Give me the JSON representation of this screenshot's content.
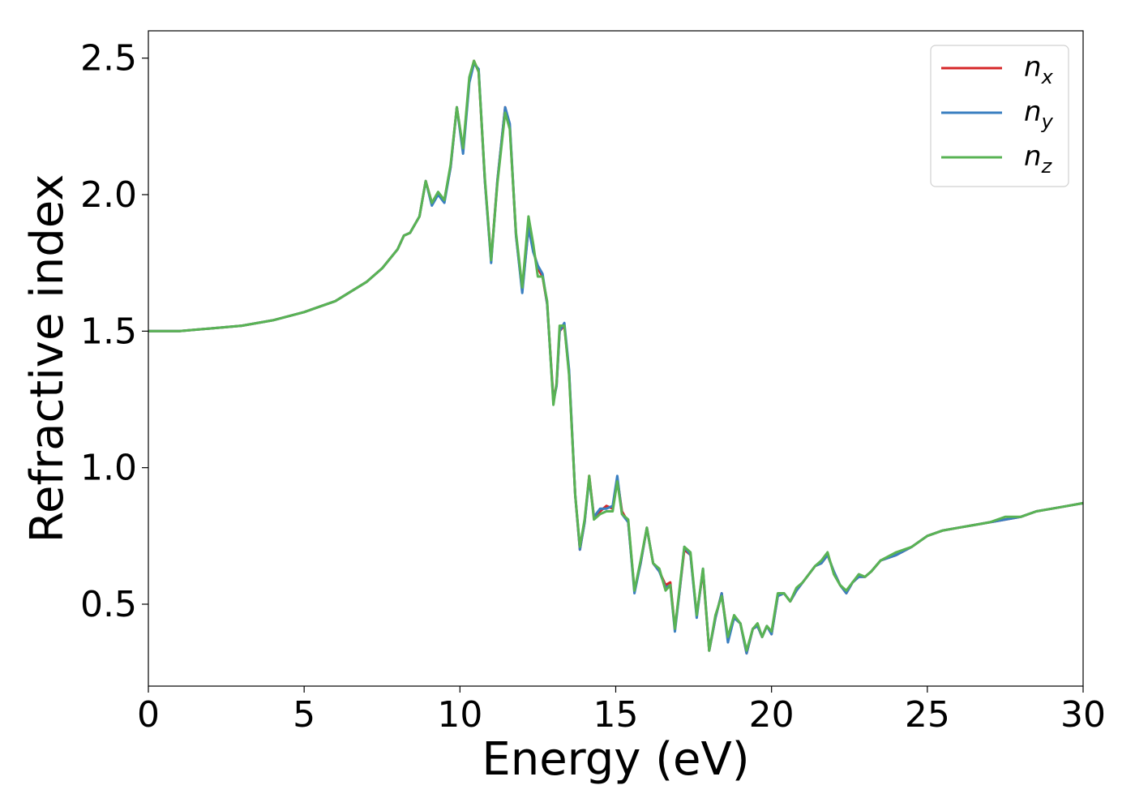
{
  "chart_data": {
    "type": "line",
    "xlabel": "Energy (eV)",
    "ylabel": "Refractive index",
    "xlim": [
      0,
      30
    ],
    "ylim": [
      0.2,
      2.6
    ],
    "xticks": [
      "0",
      "5",
      "10",
      "15",
      "20",
      "25",
      "30"
    ],
    "yticks": [
      "0.5",
      "1.0",
      "1.5",
      "2.0",
      "2.5"
    ],
    "grid": false,
    "legend_position": "top-right",
    "series": [
      {
        "name": "n_x",
        "legend_main": "n",
        "legend_sub": "x",
        "color": "#d62728",
        "x": [
          0,
          1,
          2,
          3,
          4,
          5,
          6,
          7,
          7.5,
          8.0,
          8.2,
          8.4,
          8.7,
          8.9,
          9.1,
          9.3,
          9.5,
          9.7,
          9.9,
          10.1,
          10.3,
          10.45,
          10.6,
          10.8,
          11.0,
          11.2,
          11.45,
          11.6,
          11.8,
          12.0,
          12.2,
          12.35,
          12.5,
          12.65,
          12.8,
          13.0,
          13.1,
          13.2,
          13.35,
          13.5,
          13.7,
          13.85,
          14.0,
          14.15,
          14.3,
          14.5,
          14.7,
          14.9,
          15.05,
          15.2,
          15.4,
          15.6,
          15.8,
          16.0,
          16.2,
          16.4,
          16.6,
          16.75,
          16.9,
          17.05,
          17.2,
          17.4,
          17.6,
          17.8,
          18.0,
          18.2,
          18.4,
          18.6,
          18.8,
          19.0,
          19.2,
          19.4,
          19.55,
          19.7,
          19.85,
          20.0,
          20.2,
          20.4,
          20.6,
          20.8,
          21.0,
          21.2,
          21.4,
          21.6,
          21.8,
          22.0,
          22.2,
          22.4,
          22.6,
          22.8,
          23.0,
          23.2,
          23.5,
          24.0,
          24.5,
          25.0,
          25.5,
          26.0,
          26.5,
          27.0,
          27.5,
          28.0,
          28.5,
          29.0,
          29.5,
          30.0
        ],
        "values": [
          1.5,
          1.5,
          1.51,
          1.52,
          1.54,
          1.57,
          1.61,
          1.68,
          1.73,
          1.8,
          1.85,
          1.86,
          1.92,
          2.05,
          1.97,
          2.0,
          1.98,
          2.1,
          2.32,
          2.16,
          2.42,
          2.49,
          2.45,
          2.05,
          1.76,
          2.05,
          2.32,
          2.25,
          1.85,
          1.65,
          1.88,
          1.8,
          1.73,
          1.7,
          1.6,
          1.25,
          1.3,
          1.5,
          1.52,
          1.35,
          0.9,
          0.7,
          0.8,
          0.97,
          0.82,
          0.84,
          0.86,
          0.85,
          0.96,
          0.84,
          0.8,
          0.55,
          0.65,
          0.78,
          0.65,
          0.62,
          0.57,
          0.58,
          0.41,
          0.55,
          0.7,
          0.68,
          0.46,
          0.62,
          0.33,
          0.45,
          0.54,
          0.37,
          0.45,
          0.43,
          0.32,
          0.41,
          0.42,
          0.38,
          0.42,
          0.39,
          0.53,
          0.54,
          0.51,
          0.55,
          0.58,
          0.61,
          0.64,
          0.65,
          0.68,
          0.62,
          0.57,
          0.54,
          0.58,
          0.6,
          0.6,
          0.62,
          0.66,
          0.68,
          0.71,
          0.75,
          0.77,
          0.78,
          0.79,
          0.8,
          0.81,
          0.82,
          0.84,
          0.85,
          0.86,
          0.87
        ]
      },
      {
        "name": "n_y",
        "legend_main": "n",
        "legend_sub": "y",
        "color": "#3a7fc1",
        "x": [
          0,
          1,
          2,
          3,
          4,
          5,
          6,
          7,
          7.5,
          8.0,
          8.2,
          8.4,
          8.7,
          8.9,
          9.1,
          9.3,
          9.5,
          9.7,
          9.9,
          10.1,
          10.3,
          10.45,
          10.6,
          10.8,
          11.0,
          11.2,
          11.45,
          11.6,
          11.8,
          12.0,
          12.2,
          12.35,
          12.5,
          12.65,
          12.8,
          13.0,
          13.1,
          13.2,
          13.35,
          13.5,
          13.7,
          13.85,
          14.0,
          14.15,
          14.3,
          14.5,
          14.7,
          14.9,
          15.05,
          15.2,
          15.4,
          15.6,
          15.8,
          16.0,
          16.2,
          16.4,
          16.6,
          16.75,
          16.9,
          17.05,
          17.2,
          17.4,
          17.6,
          17.8,
          18.0,
          18.2,
          18.4,
          18.6,
          18.8,
          19.0,
          19.2,
          19.4,
          19.55,
          19.7,
          19.85,
          20.0,
          20.2,
          20.4,
          20.6,
          20.8,
          21.0,
          21.2,
          21.4,
          21.6,
          21.8,
          22.0,
          22.2,
          22.4,
          22.6,
          22.8,
          23.0,
          23.2,
          23.5,
          24.0,
          24.5,
          25.0,
          25.5,
          26.0,
          26.5,
          27.0,
          27.5,
          28.0,
          28.5,
          29.0,
          29.5,
          30.0
        ],
        "values": [
          1.5,
          1.5,
          1.51,
          1.52,
          1.54,
          1.57,
          1.61,
          1.68,
          1.73,
          1.8,
          1.85,
          1.86,
          1.92,
          2.05,
          1.96,
          2.0,
          1.97,
          2.1,
          2.32,
          2.15,
          2.41,
          2.48,
          2.46,
          2.05,
          1.75,
          2.05,
          2.32,
          2.26,
          1.85,
          1.64,
          1.88,
          1.79,
          1.74,
          1.71,
          1.6,
          1.24,
          1.3,
          1.5,
          1.53,
          1.36,
          0.9,
          0.7,
          0.8,
          0.96,
          0.82,
          0.85,
          0.85,
          0.86,
          0.97,
          0.83,
          0.8,
          0.54,
          0.65,
          0.78,
          0.65,
          0.62,
          0.56,
          0.57,
          0.4,
          0.55,
          0.71,
          0.68,
          0.45,
          0.63,
          0.33,
          0.45,
          0.54,
          0.36,
          0.45,
          0.43,
          0.32,
          0.41,
          0.42,
          0.38,
          0.42,
          0.39,
          0.53,
          0.54,
          0.51,
          0.55,
          0.58,
          0.61,
          0.64,
          0.65,
          0.68,
          0.62,
          0.57,
          0.54,
          0.58,
          0.6,
          0.6,
          0.62,
          0.66,
          0.68,
          0.71,
          0.75,
          0.77,
          0.78,
          0.79,
          0.8,
          0.81,
          0.82,
          0.84,
          0.85,
          0.86,
          0.87
        ]
      },
      {
        "name": "n_z",
        "legend_main": "n",
        "legend_sub": "z",
        "color": "#59b354",
        "x": [
          0,
          1,
          2,
          3,
          4,
          5,
          6,
          7,
          7.5,
          8.0,
          8.2,
          8.4,
          8.7,
          8.9,
          9.1,
          9.3,
          9.5,
          9.7,
          9.9,
          10.1,
          10.3,
          10.45,
          10.6,
          10.8,
          11.0,
          11.2,
          11.45,
          11.6,
          11.8,
          12.0,
          12.2,
          12.35,
          12.5,
          12.65,
          12.8,
          13.0,
          13.1,
          13.2,
          13.35,
          13.5,
          13.7,
          13.85,
          14.0,
          14.15,
          14.3,
          14.5,
          14.7,
          14.9,
          15.05,
          15.2,
          15.4,
          15.6,
          15.8,
          16.0,
          16.2,
          16.4,
          16.6,
          16.75,
          16.9,
          17.05,
          17.2,
          17.4,
          17.6,
          17.8,
          18.0,
          18.2,
          18.4,
          18.6,
          18.8,
          19.0,
          19.2,
          19.4,
          19.55,
          19.7,
          19.85,
          20.0,
          20.2,
          20.4,
          20.6,
          20.8,
          21.0,
          21.2,
          21.4,
          21.6,
          21.8,
          22.0,
          22.2,
          22.4,
          22.6,
          22.8,
          23.0,
          23.2,
          23.5,
          24.0,
          24.5,
          25.0,
          25.5,
          26.0,
          26.5,
          27.0,
          27.5,
          28.0,
          28.5,
          29.0,
          29.5,
          30.0
        ],
        "values": [
          1.5,
          1.5,
          1.51,
          1.52,
          1.54,
          1.57,
          1.61,
          1.68,
          1.73,
          1.8,
          1.85,
          1.86,
          1.92,
          2.05,
          1.97,
          2.01,
          1.98,
          2.11,
          2.32,
          2.17,
          2.43,
          2.49,
          2.45,
          2.06,
          1.76,
          2.04,
          2.3,
          2.24,
          1.86,
          1.66,
          1.92,
          1.82,
          1.7,
          1.7,
          1.61,
          1.23,
          1.31,
          1.52,
          1.52,
          1.34,
          0.9,
          0.71,
          0.81,
          0.97,
          0.81,
          0.83,
          0.84,
          0.84,
          0.95,
          0.83,
          0.81,
          0.55,
          0.66,
          0.78,
          0.65,
          0.63,
          0.55,
          0.57,
          0.41,
          0.56,
          0.71,
          0.69,
          0.46,
          0.63,
          0.33,
          0.46,
          0.53,
          0.38,
          0.46,
          0.43,
          0.33,
          0.41,
          0.43,
          0.38,
          0.42,
          0.4,
          0.54,
          0.54,
          0.51,
          0.56,
          0.58,
          0.61,
          0.64,
          0.66,
          0.69,
          0.61,
          0.57,
          0.55,
          0.58,
          0.61,
          0.6,
          0.62,
          0.66,
          0.69,
          0.71,
          0.75,
          0.77,
          0.78,
          0.79,
          0.8,
          0.82,
          0.82,
          0.84,
          0.85,
          0.86,
          0.87
        ]
      }
    ]
  }
}
